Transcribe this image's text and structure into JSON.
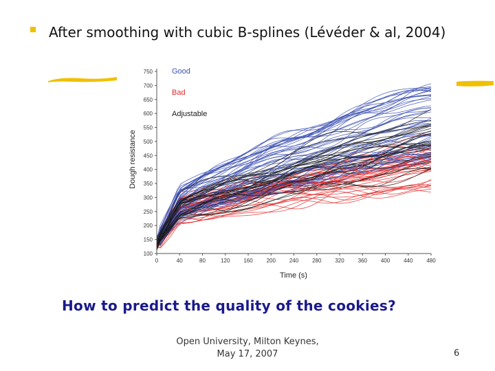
{
  "slide": {
    "bullet_text": "After smoothing with cubic B-splines (Lévéder & al, 2004)",
    "question": "How to predict the quality of the cookies?",
    "footer_line1": "Open University, Milton Keynes,",
    "footer_line2": "May 17, 2007",
    "page_number": "6",
    "accent_color": "#f0c000",
    "question_color": "#1a1a8c"
  },
  "chart_data": {
    "type": "line",
    "xlabel": "Time (s)",
    "ylabel": "Dough resistance",
    "xlim": [
      0,
      480
    ],
    "ylim": [
      100,
      750
    ],
    "x_ticks": [
      0,
      40,
      80,
      120,
      160,
      200,
      240,
      280,
      320,
      360,
      400,
      440,
      480
    ],
    "y_ticks": [
      100,
      150,
      200,
      250,
      300,
      350,
      400,
      450,
      500,
      550,
      600,
      650,
      700,
      750
    ],
    "legend_position": "top-left",
    "grid": false,
    "series": [
      {
        "name": "Good",
        "color": "#3b4fb0",
        "count": 50,
        "representative": {
          "x": [
            0,
            40,
            80,
            120,
            160,
            200,
            240,
            280,
            320,
            360,
            400,
            440,
            480
          ],
          "y": [
            140,
            280,
            315,
            345,
            375,
            405,
            430,
            455,
            480,
            505,
            525,
            545,
            560
          ]
        }
      },
      {
        "name": "Bad",
        "color": "#e02a2a",
        "count": 40,
        "representative": {
          "x": [
            0,
            40,
            80,
            120,
            160,
            200,
            240,
            280,
            320,
            360,
            400,
            440,
            480
          ],
          "y": [
            140,
            255,
            270,
            285,
            300,
            315,
            330,
            345,
            355,
            370,
            385,
            400,
            410
          ]
        }
      },
      {
        "name": "Adjustable",
        "color": "#1a1a1a",
        "count": 25,
        "representative": {
          "x": [
            0,
            40,
            80,
            120,
            160,
            200,
            240,
            280,
            320,
            360,
            400,
            440,
            480
          ],
          "y": [
            140,
            265,
            290,
            310,
            335,
            360,
            385,
            405,
            425,
            445,
            465,
            480,
            495
          ]
        }
      }
    ]
  }
}
